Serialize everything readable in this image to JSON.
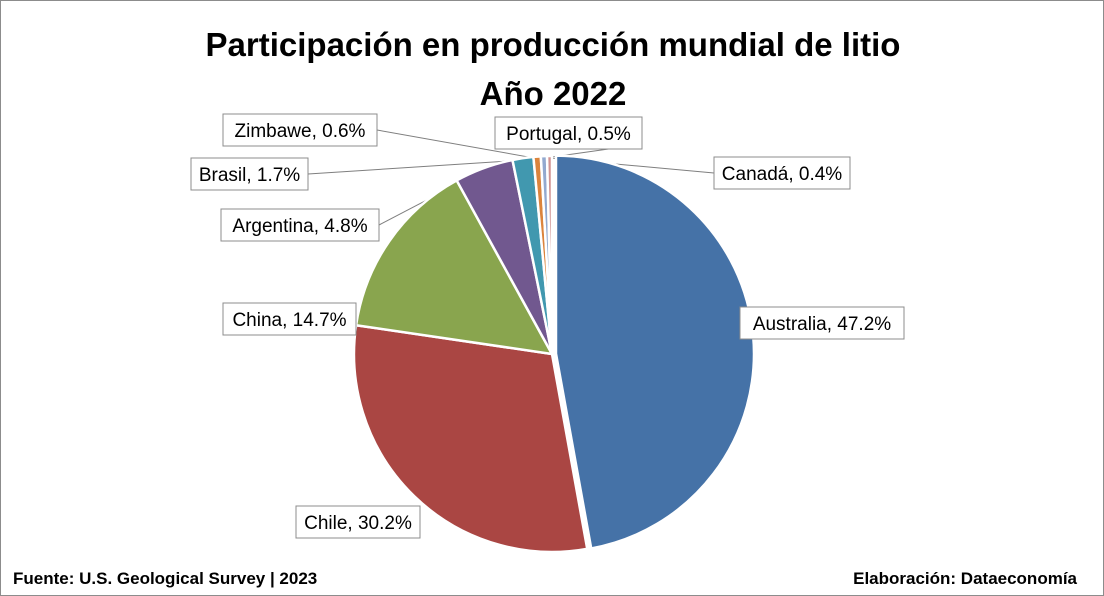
{
  "title": "Participación en producción mundial de litio",
  "subtitle": "Año 2022",
  "footer": {
    "source": "Fuente: U.S. Geological Survey | 2023",
    "credit": "Elaboración: Dataeconomía"
  },
  "chart_data": {
    "type": "pie",
    "title": "Participación en producción mundial de litio",
    "subtitle": "Año 2022",
    "categories": [
      "Australia",
      "Chile",
      "China",
      "Argentina",
      "Brasil",
      "Zimbawe",
      "Portugal",
      "Canadá"
    ],
    "values": [
      47.2,
      30.2,
      14.7,
      4.8,
      1.7,
      0.6,
      0.5,
      0.4
    ],
    "labels": [
      "Australia, 47.2%",
      "Chile, 30.2%",
      "China, 14.7%",
      "Argentina, 4.8%",
      "Brasil, 1.7%",
      "Zimbawe, 0.6%",
      "Portugal, 0.5%",
      "Canadá, 0.4%"
    ],
    "unit": "%",
    "colors": [
      "#4572A7",
      "#AA4643",
      "#89A54E",
      "#71588F",
      "#4198AF",
      "#DB843D",
      "#93A9CF",
      "#D19392"
    ],
    "start": "12 o'clock, clockwise",
    "exploded": [
      "Australia"
    ]
  }
}
